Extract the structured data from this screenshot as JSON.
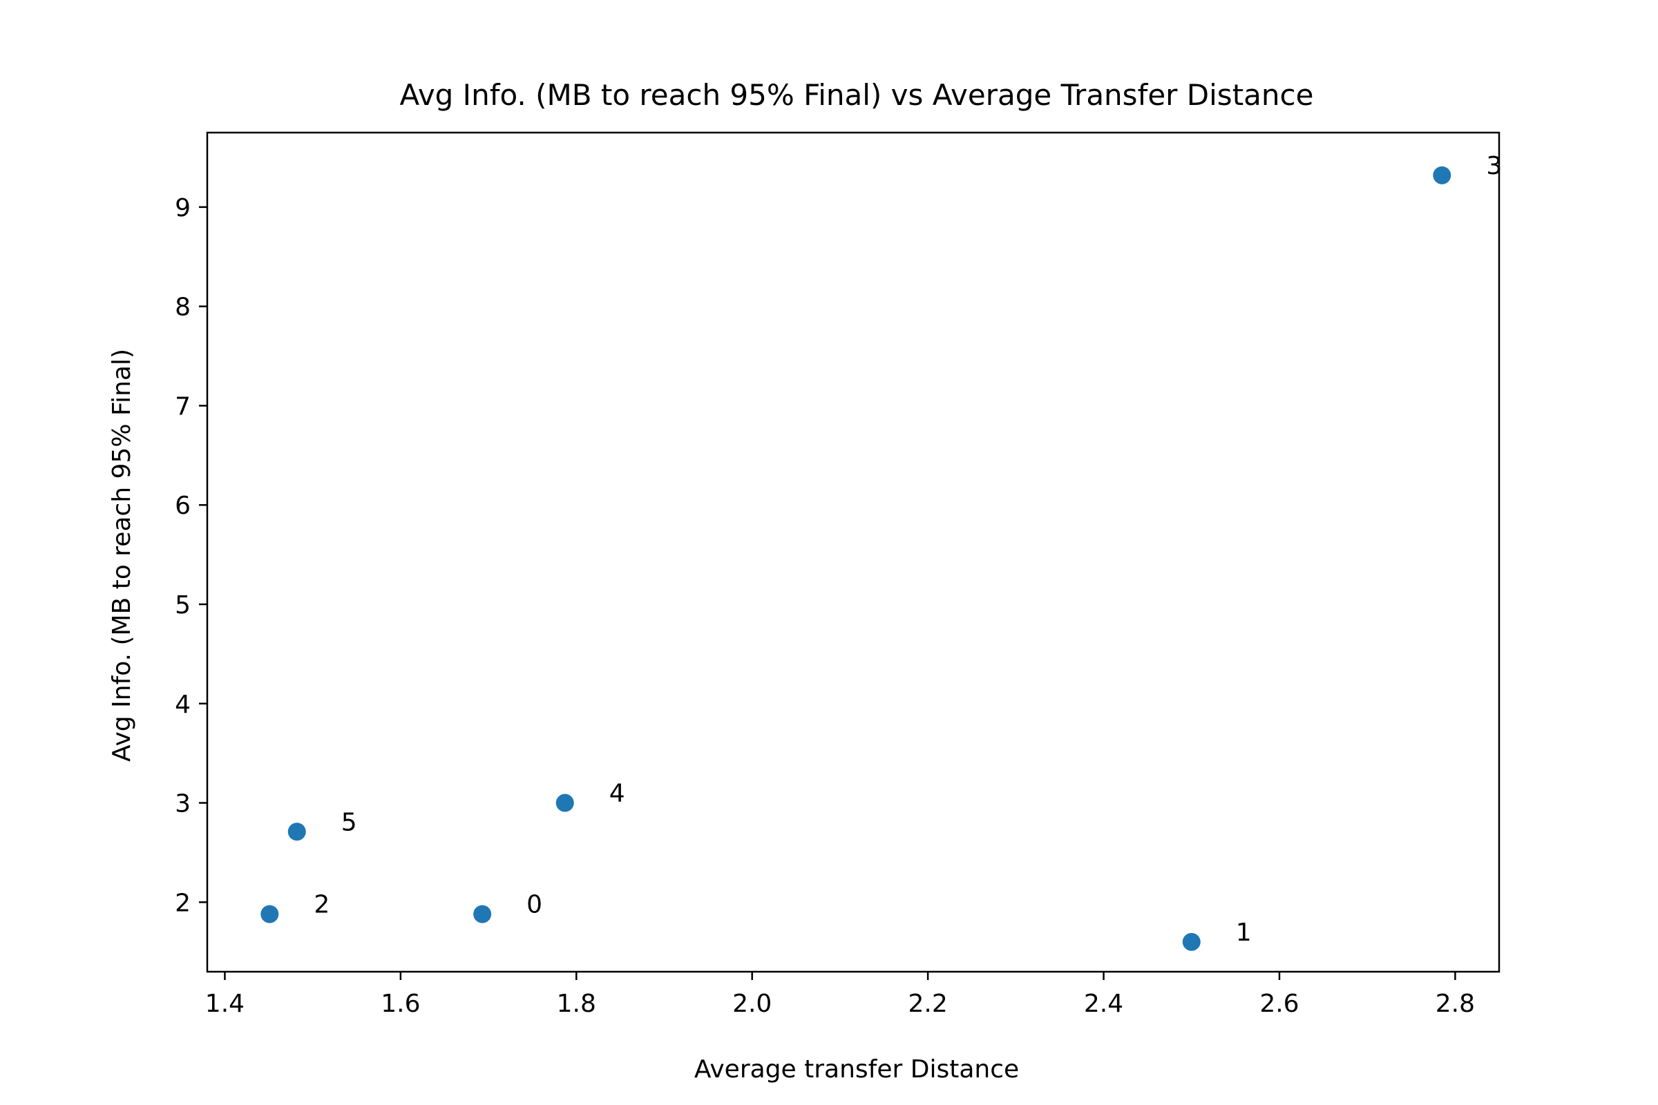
{
  "chart_data": {
    "type": "scatter",
    "title": "Avg Info. (MB to reach 95% Final) vs Average Transfer Distance",
    "xlabel": "Average transfer Distance",
    "ylabel": "Avg Info. (MB to reach 95% Final)",
    "xlim": [
      1.38,
      2.85
    ],
    "ylim": [
      1.3,
      9.75
    ],
    "xticks": [
      1.4,
      1.6,
      1.8,
      2.0,
      2.2,
      2.4,
      2.6,
      2.8
    ],
    "xtick_labels": [
      "1.4",
      "1.6",
      "1.8",
      "2.0",
      "2.2",
      "2.4",
      "2.6",
      "2.8"
    ],
    "yticks": [
      2,
      3,
      4,
      5,
      6,
      7,
      8,
      9
    ],
    "ytick_labels": [
      "2",
      "3",
      "4",
      "5",
      "6",
      "7",
      "8",
      "9"
    ],
    "grid": false,
    "marker_color": "#1f77b4",
    "points": [
      {
        "label": "0",
        "x": 1.693,
        "y": 1.88
      },
      {
        "label": "1",
        "x": 2.5,
        "y": 1.6
      },
      {
        "label": "2",
        "x": 1.451,
        "y": 1.88
      },
      {
        "label": "3",
        "x": 2.785,
        "y": 9.32
      },
      {
        "label": "4",
        "x": 1.787,
        "y": 3.0
      },
      {
        "label": "5",
        "x": 1.482,
        "y": 2.71
      }
    ]
  }
}
